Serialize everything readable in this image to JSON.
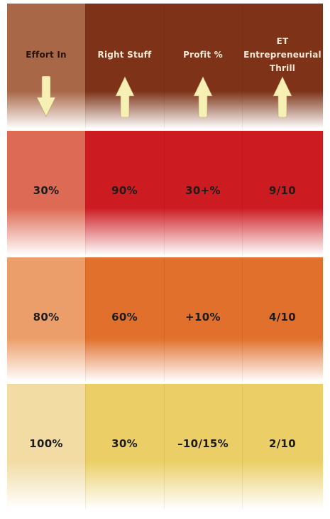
{
  "headers": [
    {
      "label": "Effort In",
      "direction": "down"
    },
    {
      "label": "Right Stuff",
      "direction": "up"
    },
    {
      "label": "Profit %",
      "direction": "up"
    },
    {
      "label_lines": [
        "ET",
        "Entrepreneurial",
        "Thrill"
      ],
      "direction": "up"
    }
  ],
  "rows": [
    {
      "values": [
        "30%",
        "90%",
        "30+%",
        "9/10"
      ]
    },
    {
      "values": [
        "80%",
        "60%",
        "+10%",
        "4/10"
      ]
    },
    {
      "values": [
        "100%",
        "30%",
        "–10/15%",
        "2/10"
      ]
    }
  ],
  "colors": {
    "header_first": "#a86848",
    "header_rest": "#7e3318",
    "row1_first": "#dd6a54",
    "row1_rest": "#cc1c22",
    "row2_first": "#ec9e6a",
    "row2_rest": "#e1702c",
    "row3_first": "#f2dca4",
    "row3_rest": "#ebcf66",
    "arrow_fill": "#f7f0b4"
  },
  "icons": [
    "arrow-down-icon",
    "arrow-up-icon"
  ]
}
